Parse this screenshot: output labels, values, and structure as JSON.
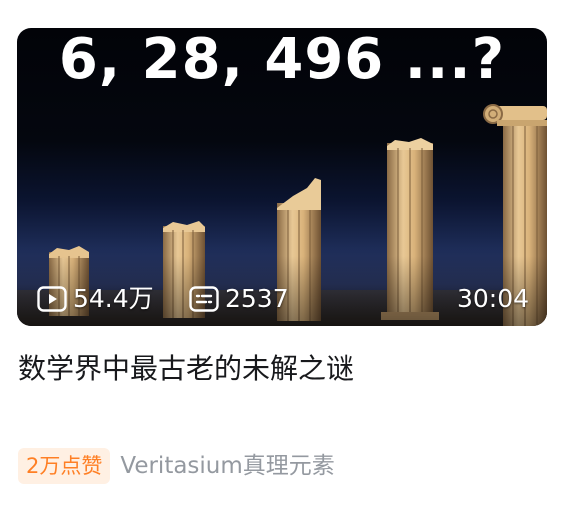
{
  "video": {
    "thumbnail_text": "6, 28, 496 ...?",
    "views": "54.4万",
    "danmaku_count": "2537",
    "duration": "30:04",
    "title": "数学界中最古老的未解之谜",
    "badge": "2万点赞",
    "author": "Veritasium真理元素"
  },
  "icons": {
    "views": "play-icon",
    "danmaku": "danmaku-icon"
  },
  "colors": {
    "badge_text": "#ff7f24",
    "badge_bg": "#fff0e3",
    "author_text": "#9499a0",
    "title_text": "#18191c"
  }
}
